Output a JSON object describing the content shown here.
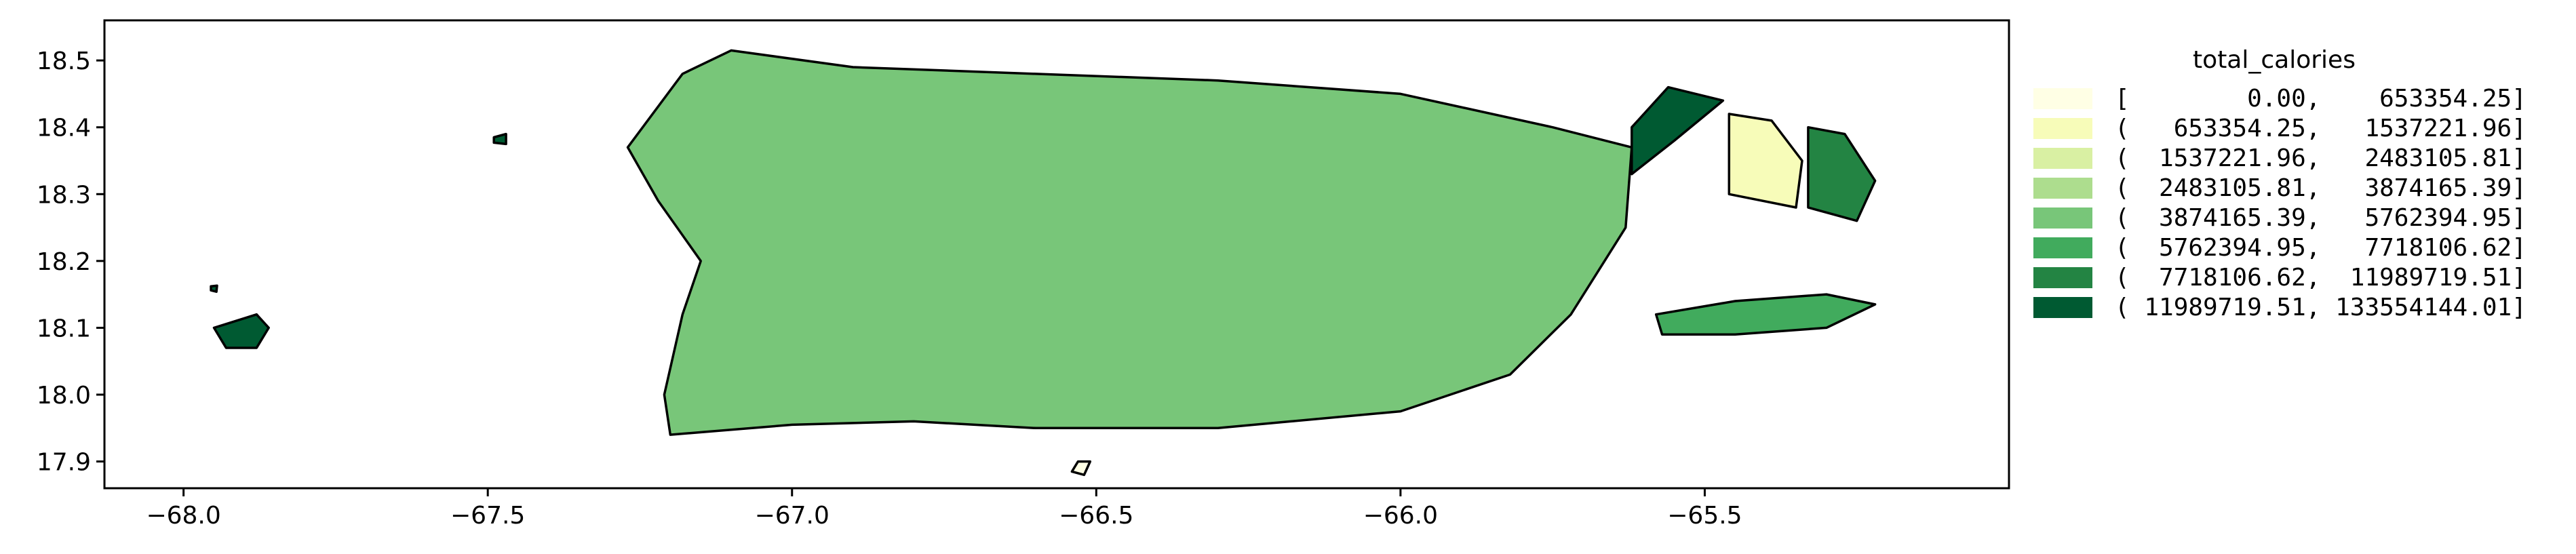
{
  "chart_data": {
    "type": "choropleth",
    "title": "",
    "legend_title": "total_calories",
    "legend_placement": "right",
    "xlim": [
      -68.13,
      -65.0
    ],
    "ylim": [
      17.86,
      18.56
    ],
    "x_ticks": [
      {
        "value": -68.0,
        "label": "−68.0"
      },
      {
        "value": -67.5,
        "label": "−67.5"
      },
      {
        "value": -67.0,
        "label": "−67.0"
      },
      {
        "value": -66.5,
        "label": "−66.5"
      },
      {
        "value": -66.0,
        "label": "−66.0"
      },
      {
        "value": -65.5,
        "label": "−65.5"
      }
    ],
    "y_ticks": [
      {
        "value": 17.9,
        "label": "17.9"
      },
      {
        "value": 18.0,
        "label": "18.0"
      },
      {
        "value": 18.1,
        "label": "18.1"
      },
      {
        "value": 18.2,
        "label": "18.2"
      },
      {
        "value": 18.3,
        "label": "18.3"
      },
      {
        "value": 18.4,
        "label": "18.4"
      },
      {
        "value": 18.5,
        "label": "18.5"
      }
    ],
    "classes": [
      {
        "label": "[        0.00,    653354.25]",
        "color": "#ffffe5"
      },
      {
        "label": "(   653354.25,   1537221.96]",
        "color": "#f7fcb9"
      },
      {
        "label": "(  1537221.96,   2483105.81]",
        "color": "#d9f0a3"
      },
      {
        "label": "(  2483105.81,   3874165.39]",
        "color": "#addd8e"
      },
      {
        "label": "(  3874165.39,   5762394.95]",
        "color": "#78c679"
      },
      {
        "label": "(  5762394.95,   7718106.62]",
        "color": "#41ab5d"
      },
      {
        "label": "(  7718106.62,  11989719.51]",
        "color": "#238443"
      },
      {
        "label": "( 11989719.51, 133554144.01]",
        "color": "#005a32"
      }
    ],
    "regions": [
      {
        "name": "main-island",
        "class": 4,
        "lonlat": [
          [
            -67.27,
            18.37
          ],
          [
            -67.18,
            18.48
          ],
          [
            -67.1,
            18.515
          ],
          [
            -66.9,
            18.49
          ],
          [
            -66.6,
            18.48
          ],
          [
            -66.3,
            18.47
          ],
          [
            -66.0,
            18.45
          ],
          [
            -65.75,
            18.4
          ],
          [
            -65.62,
            18.37
          ],
          [
            -65.63,
            18.25
          ],
          [
            -65.72,
            18.12
          ],
          [
            -65.82,
            18.03
          ],
          [
            -66.0,
            17.975
          ],
          [
            -66.3,
            17.95
          ],
          [
            -66.6,
            17.95
          ],
          [
            -66.8,
            17.96
          ],
          [
            -67.0,
            17.955
          ],
          [
            -67.2,
            17.94
          ],
          [
            -67.21,
            18.0
          ],
          [
            -67.18,
            18.12
          ],
          [
            -67.15,
            18.2
          ],
          [
            -67.22,
            18.29
          ]
        ]
      },
      {
        "name": "culebra-island",
        "class": 7,
        "lonlat": [
          [
            -65.62,
            18.4
          ],
          [
            -65.56,
            18.46
          ],
          [
            -65.47,
            18.44
          ],
          [
            -65.55,
            18.38
          ],
          [
            -65.62,
            18.33
          ]
        ]
      },
      {
        "name": "vieques-island",
        "class": 5,
        "lonlat": [
          [
            -65.58,
            18.12
          ],
          [
            -65.45,
            18.14
          ],
          [
            -65.3,
            18.15
          ],
          [
            -65.22,
            18.135
          ],
          [
            -65.3,
            18.1
          ],
          [
            -65.45,
            18.09
          ],
          [
            -65.57,
            18.09
          ]
        ]
      },
      {
        "name": "mona-island",
        "class": 7,
        "lonlat": [
          [
            -67.95,
            18.1
          ],
          [
            -67.88,
            18.12
          ],
          [
            -67.86,
            18.1
          ],
          [
            -67.88,
            18.07
          ],
          [
            -67.93,
            18.07
          ]
        ]
      },
      {
        "name": "desecheo-island",
        "class": 7,
        "lonlat": [
          [
            -67.49,
            18.385
          ],
          [
            -67.47,
            18.39
          ],
          [
            -67.47,
            18.375
          ],
          [
            -67.49,
            18.377
          ]
        ]
      },
      {
        "name": "monito-island",
        "class": 7,
        "lonlat": [
          [
            -67.955,
            18.162
          ],
          [
            -67.945,
            18.163
          ],
          [
            -67.946,
            18.154
          ],
          [
            -67.955,
            18.156
          ]
        ]
      },
      {
        "name": "caja-de-muerto",
        "class": 0,
        "lonlat": [
          [
            -66.53,
            17.9
          ],
          [
            -66.51,
            17.9
          ],
          [
            -66.52,
            17.88
          ],
          [
            -66.54,
            17.885
          ]
        ]
      },
      {
        "name": "east-cay-west",
        "class": 1,
        "lonlat": [
          [
            -65.46,
            18.42
          ],
          [
            -65.39,
            18.41
          ],
          [
            -65.34,
            18.35
          ],
          [
            -65.35,
            18.28
          ],
          [
            -65.46,
            18.3
          ]
        ]
      },
      {
        "name": "east-cay-east",
        "class": 6,
        "lonlat": [
          [
            -65.33,
            18.4
          ],
          [
            -65.27,
            18.39
          ],
          [
            -65.22,
            18.32
          ],
          [
            -65.25,
            18.26
          ],
          [
            -65.33,
            18.28
          ]
        ]
      }
    ]
  }
}
